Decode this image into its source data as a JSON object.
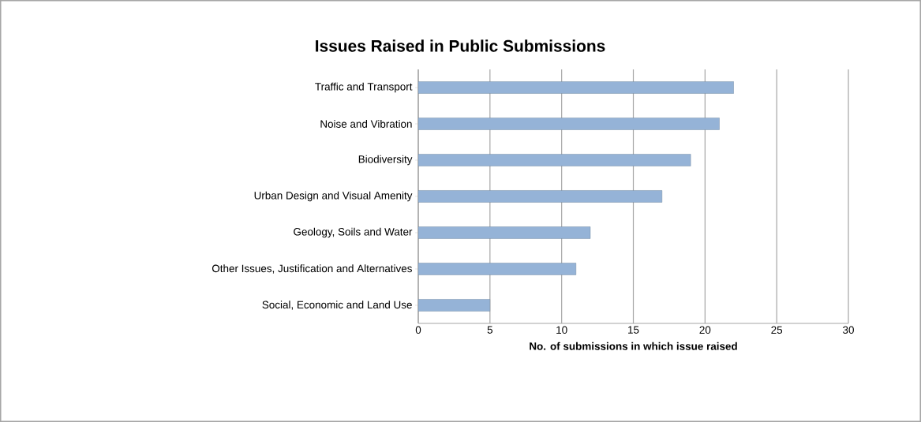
{
  "chart_data": {
    "type": "bar",
    "orientation": "horizontal",
    "title": "Issues Raised in Public Submissions",
    "xlabel": "No. of submissions in which issue raised",
    "categories": [
      "Traffic and Transport",
      "Noise and Vibration",
      "Biodiversity",
      "Urban Design and Visual Amenity",
      "Geology, Soils and Water",
      "Other Issues, Justification and Alternatives",
      "Social, Economic and Land Use"
    ],
    "values": [
      22,
      21,
      19,
      17,
      12,
      11,
      5
    ],
    "color": "#95b3d7",
    "xlim": [
      0,
      30
    ],
    "xticks": [
      0,
      5,
      10,
      15,
      20,
      25,
      30
    ],
    "grid": "x"
  }
}
